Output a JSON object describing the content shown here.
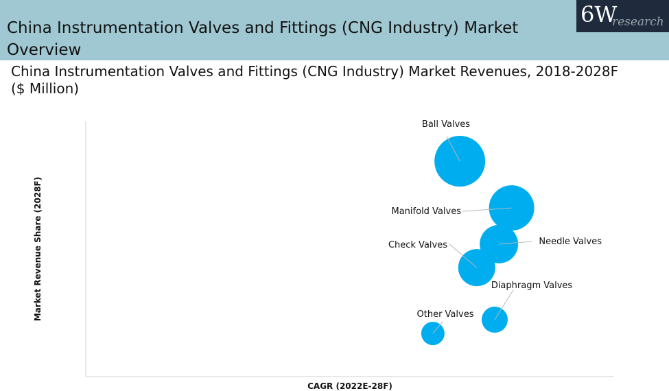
{
  "header": {
    "title": "China Instrumentation Valves and Fittings (CNG Industry) Market Overview",
    "logo_text": "6W research"
  },
  "logo": {
    "main": "6W",
    "sub": "research"
  },
  "colors": {
    "bubble": "#00aeef",
    "header_bg": "#9fc8d2",
    "logo_bg": "#1f2b3d"
  },
  "chart_data": {
    "type": "scatter",
    "subtype": "bubble",
    "title": "China Instrumentation Valves and Fittings (CNG Industry) Market Revenues, 2018-2028F ($ Million)",
    "xlabel": "CAGR (2022E-28F)",
    "ylabel": "Market Revenue Share (2028F)",
    "xlim": [
      0,
      100
    ],
    "ylim": [
      0,
      100
    ],
    "grid": false,
    "legend": "none",
    "points": [
      {
        "name": "Ball Valves",
        "x": 70.8,
        "y": 84.4,
        "size": 100
      },
      {
        "name": "Manifold Valves",
        "x": 80.6,
        "y": 66.1,
        "size": 79.5
      },
      {
        "name": "Needle Valves",
        "x": 78.2,
        "y": 51.9,
        "size": 57.3
      },
      {
        "name": "Check Valves",
        "x": 74.0,
        "y": 42.7,
        "size": 53.3
      },
      {
        "name": "Diaphragm Valves",
        "x": 77.4,
        "y": 22.3,
        "size": 26.4
      },
      {
        "name": "Other Valves",
        "x": 65.7,
        "y": 16.9,
        "size": 21.1
      }
    ]
  }
}
